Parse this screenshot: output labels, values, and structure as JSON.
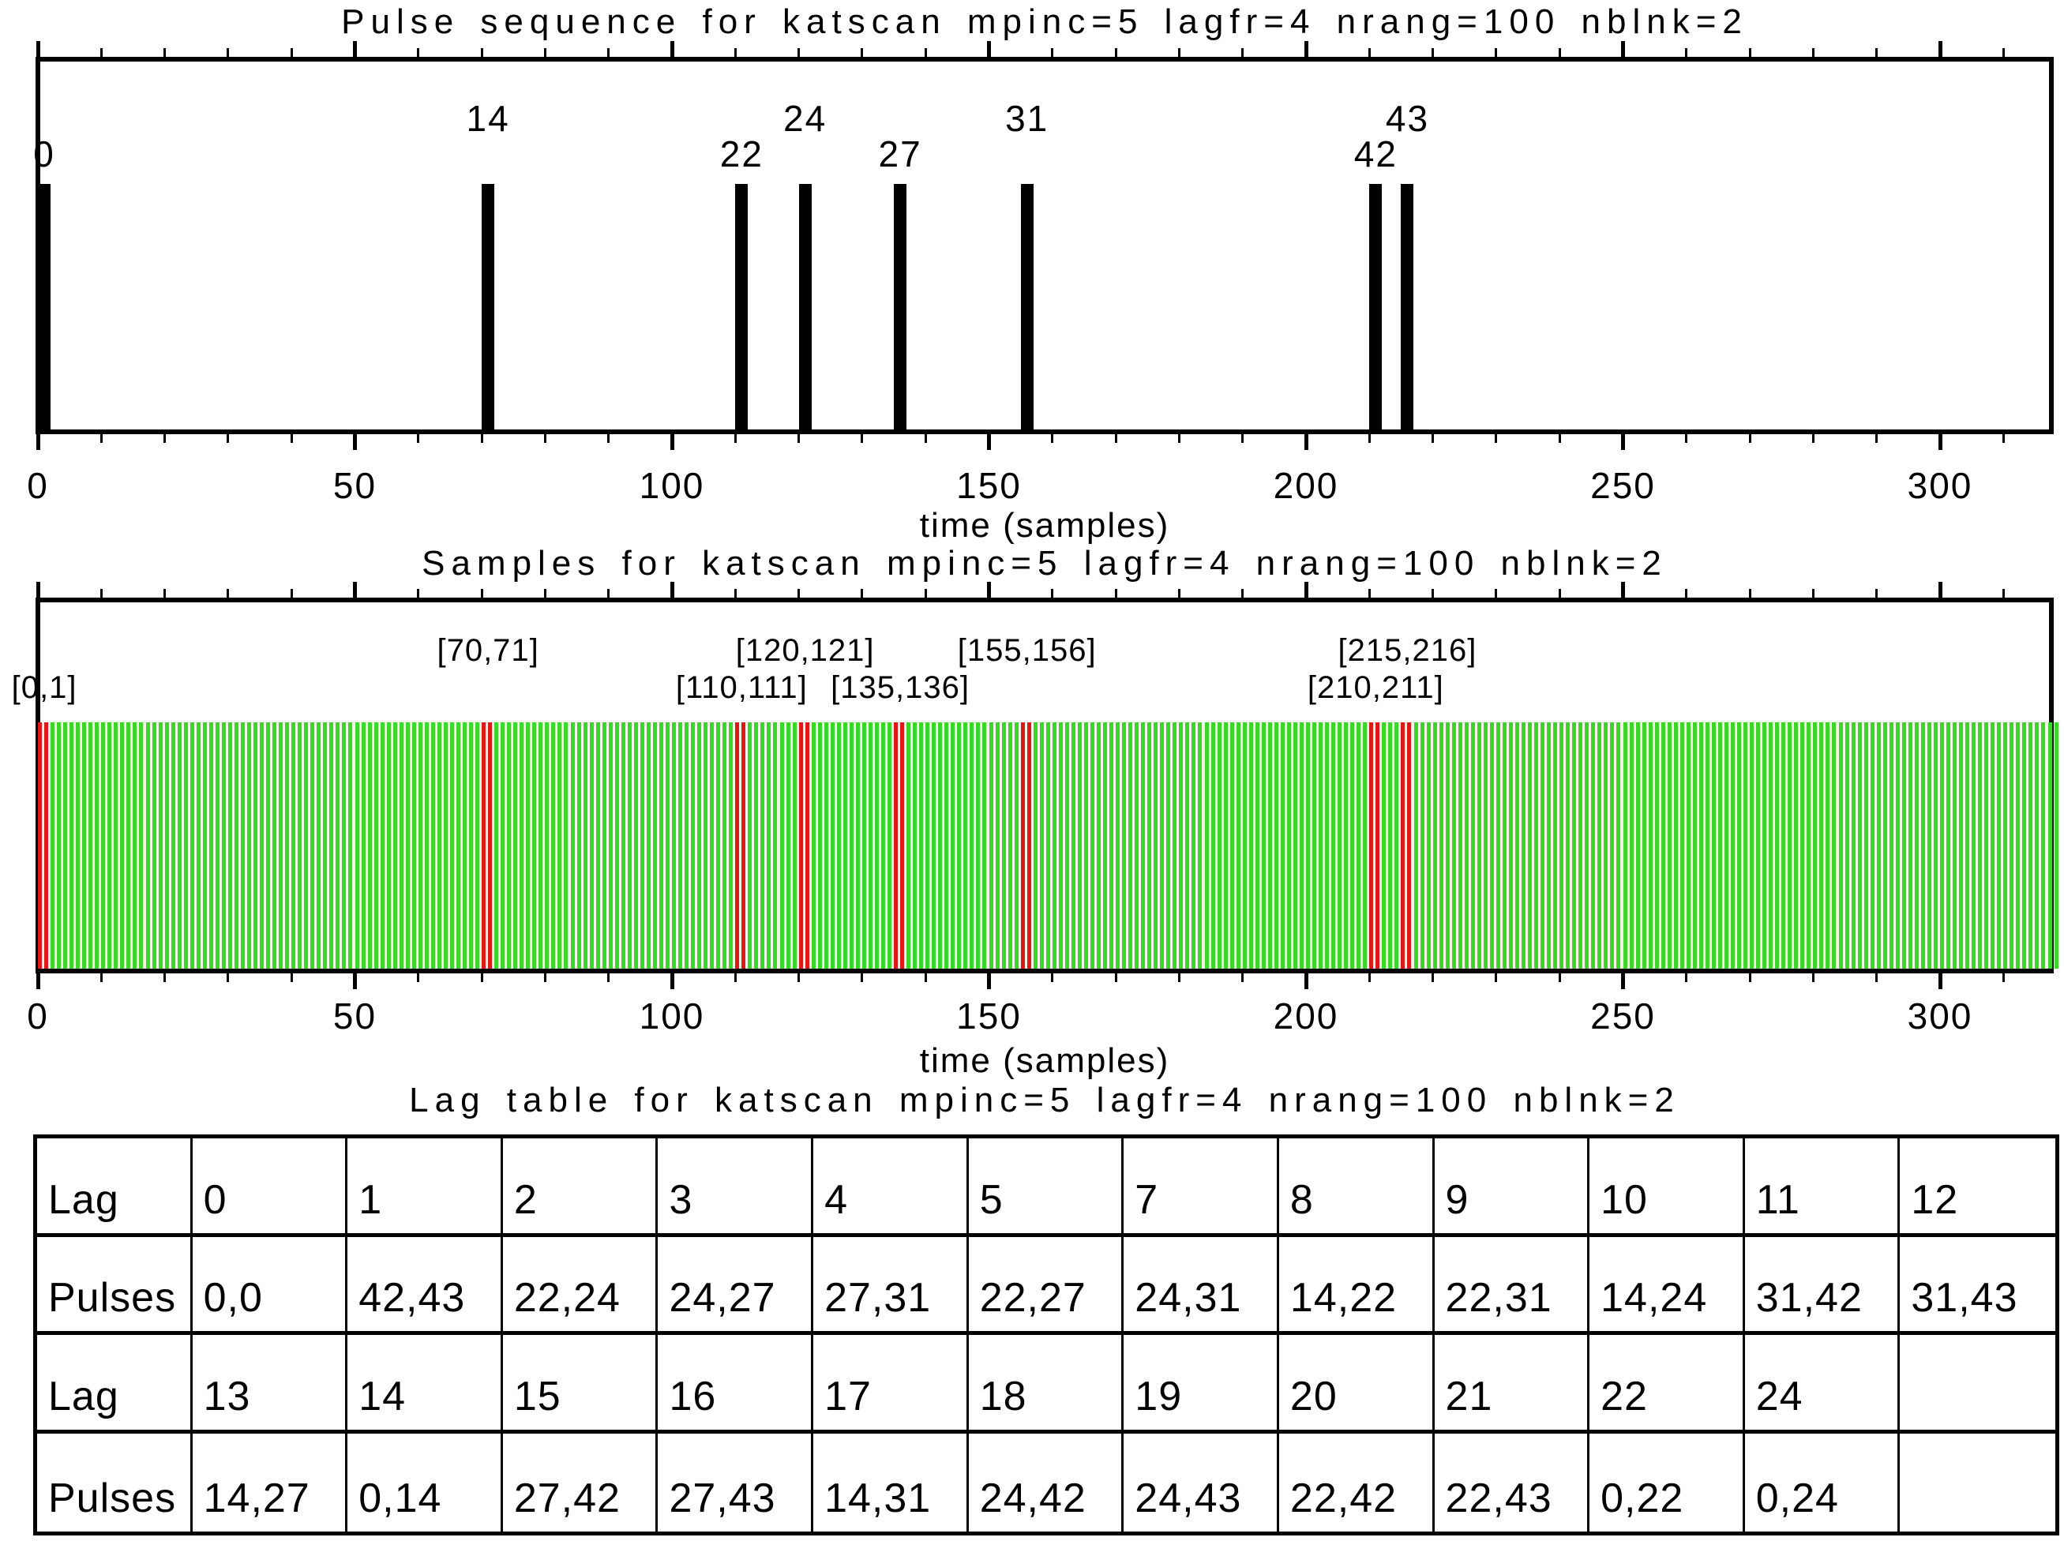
{
  "figure": {
    "background": "#ffffff",
    "axis_color": "#000000"
  },
  "chart_data": [
    {
      "type": "bar",
      "title": "Pulse sequence for katscan mpinc=5 lagfr=4 nrang=100 nblnk=2",
      "xlabel": "time (samples)",
      "xlim": [
        0,
        318
      ],
      "ylim": [
        0,
        1
      ],
      "grid": false,
      "xticks": [
        0,
        50,
        100,
        150,
        200,
        250,
        300
      ],
      "minor_tick_step": 10,
      "minor_tick_max": 310,
      "bar_color": "#000000",
      "bar_width_samples": 2,
      "pulses": [
        {
          "label": "0",
          "time": 0,
          "label_row": "low"
        },
        {
          "label": "14",
          "time": 70,
          "label_row": "high"
        },
        {
          "label": "22",
          "time": 110,
          "label_row": "low"
        },
        {
          "label": "24",
          "time": 120,
          "label_row": "high"
        },
        {
          "label": "27",
          "time": 135,
          "label_row": "low"
        },
        {
          "label": "31",
          "time": 155,
          "label_row": "high"
        },
        {
          "label": "42",
          "time": 210,
          "label_row": "low"
        },
        {
          "label": "43",
          "time": 215,
          "label_row": "high"
        }
      ]
    },
    {
      "type": "area",
      "title": "Samples for katscan mpinc=5 lagfr=4 nrang=100 nblnk=2",
      "xlabel": "time (samples)",
      "xlim": [
        0,
        318
      ],
      "grid": false,
      "xticks": [
        0,
        50,
        100,
        150,
        200,
        250,
        300
      ],
      "minor_tick_step": 10,
      "minor_tick_max": 310,
      "samples_first": 0,
      "samples_last": 318,
      "sample_color": "#3cd52a",
      "blanked_color": "#dc1818",
      "stripe_gap_color": "#f2f4e8",
      "blanked_pairs": [
        [
          0,
          1
        ],
        [
          70,
          71
        ],
        [
          110,
          111
        ],
        [
          120,
          121
        ],
        [
          135,
          136
        ],
        [
          155,
          156
        ],
        [
          210,
          211
        ],
        [
          215,
          216
        ]
      ],
      "pair_labels": [
        {
          "label": "[0,1]",
          "time": 0,
          "label_row": "low"
        },
        {
          "label": "[70,71]",
          "time": 70,
          "label_row": "high"
        },
        {
          "label": "[110,111]",
          "time": 110,
          "label_row": "low"
        },
        {
          "label": "[120,121]",
          "time": 120,
          "label_row": "high"
        },
        {
          "label": "[135,136]",
          "time": 135,
          "label_row": "low"
        },
        {
          "label": "[155,156]",
          "time": 155,
          "label_row": "high"
        },
        {
          "label": "[210,211]",
          "time": 210,
          "label_row": "low"
        },
        {
          "label": "[215,216]",
          "time": 215,
          "label_row": "high"
        }
      ]
    },
    {
      "type": "table",
      "title": "Lag table for katscan mpinc=5 lagfr=4 nrang=100 nblnk=2",
      "rows": [
        {
          "header": "Lag",
          "cells": [
            "0",
            "1",
            "2",
            "3",
            "4",
            "5",
            "7",
            "8",
            "9",
            "10",
            "11",
            "12"
          ]
        },
        {
          "header": "Pulses",
          "cells": [
            "0,0",
            "42,43",
            "22,24",
            "24,27",
            "27,31",
            "22,27",
            "24,31",
            "14,22",
            "22,31",
            "14,24",
            "31,42",
            "31,43"
          ]
        },
        {
          "header": "Lag",
          "cells": [
            "13",
            "14",
            "15",
            "16",
            "17",
            "18",
            "19",
            "20",
            "21",
            "22",
            "24",
            ""
          ]
        },
        {
          "header": "Pulses",
          "cells": [
            "14,27",
            "0,14",
            "27,42",
            "27,43",
            "14,31",
            "24,42",
            "24,43",
            "22,42",
            "22,43",
            "0,22",
            "0,24",
            ""
          ]
        }
      ]
    }
  ]
}
